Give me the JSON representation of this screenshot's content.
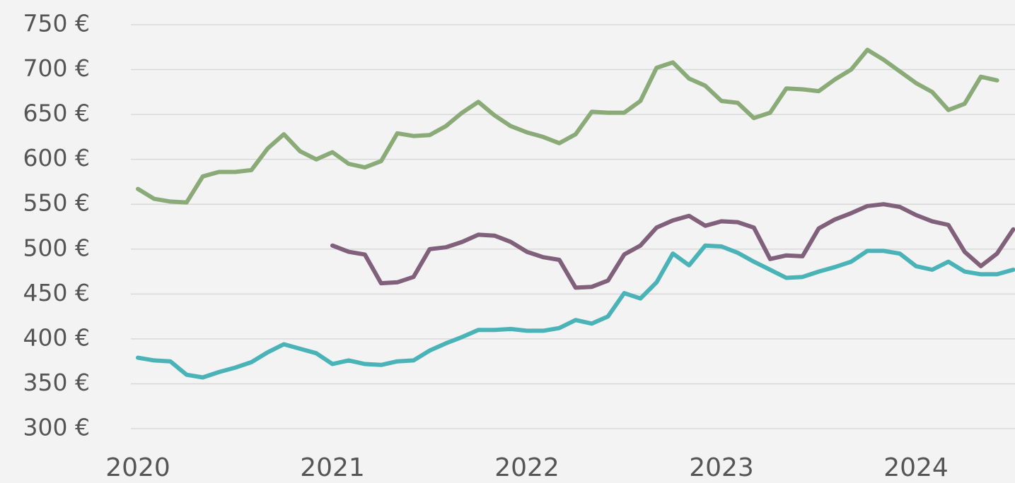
{
  "chart_data": {
    "type": "line",
    "categories": [
      "2020",
      null,
      null,
      null,
      null,
      null,
      null,
      null,
      null,
      null,
      null,
      null,
      "2021",
      null,
      null,
      null,
      null,
      null,
      null,
      null,
      null,
      null,
      null,
      null,
      "2022",
      null,
      null,
      null,
      null,
      null,
      null,
      null,
      null,
      null,
      null,
      null,
      "2023",
      null,
      null,
      null,
      null,
      null,
      null,
      null,
      null,
      null,
      null,
      null,
      "2024",
      null,
      null,
      null,
      null,
      null,
      null
    ],
    "series": [
      {
        "color": "#8aab78",
        "values": [
          567,
          556,
          553,
          552,
          581,
          586,
          586,
          588,
          612,
          628,
          609,
          600,
          608,
          595,
          591,
          598,
          629,
          626,
          627,
          637,
          652,
          664,
          649,
          637,
          630,
          625,
          618,
          628,
          653,
          652,
          652,
          665,
          702,
          708,
          690,
          682,
          665,
          663,
          646,
          652,
          679,
          678,
          676,
          689,
          700,
          722,
          711,
          698,
          685,
          675,
          655,
          662,
          692,
          688,
          null
        ]
      },
      {
        "color": "#80607a",
        "values": [
          null,
          null,
          null,
          null,
          null,
          null,
          null,
          null,
          null,
          null,
          null,
          null,
          504,
          497,
          494,
          462,
          463,
          469,
          500,
          502,
          508,
          516,
          515,
          508,
          497,
          491,
          488,
          457,
          458,
          465,
          494,
          504,
          524,
          532,
          537,
          526,
          531,
          530,
          524,
          489,
          493,
          492,
          523,
          533,
          540,
          548,
          550,
          547,
          538,
          531,
          527,
          497,
          481,
          495,
          522
        ]
      },
      {
        "color": "#4ab3b8",
        "values": [
          379,
          376,
          375,
          360,
          357,
          363,
          368,
          374,
          385,
          394,
          389,
          384,
          372,
          376,
          372,
          371,
          375,
          376,
          387,
          395,
          402,
          410,
          410,
          411,
          409,
          409,
          412,
          421,
          417,
          425,
          451,
          445,
          463,
          495,
          482,
          504,
          503,
          496,
          486,
          477,
          468,
          469,
          475,
          480,
          486,
          498,
          498,
          495,
          481,
          477,
          486,
          475,
          472,
          472,
          477
        ]
      }
    ],
    "ylim": [
      300,
      750
    ],
    "yticks": [
      {
        "value": 300,
        "label": "300 €"
      },
      {
        "value": 350,
        "label": "350 €"
      },
      {
        "value": 400,
        "label": "400 €"
      },
      {
        "value": 450,
        "label": "450 €"
      },
      {
        "value": 500,
        "label": "500 €"
      },
      {
        "value": 550,
        "label": "550 €"
      },
      {
        "value": 600,
        "label": "600 €"
      },
      {
        "value": 650,
        "label": "650 €"
      },
      {
        "value": 700,
        "label": "700 €"
      },
      {
        "value": 750,
        "label": "750 €"
      }
    ],
    "grid": true
  }
}
